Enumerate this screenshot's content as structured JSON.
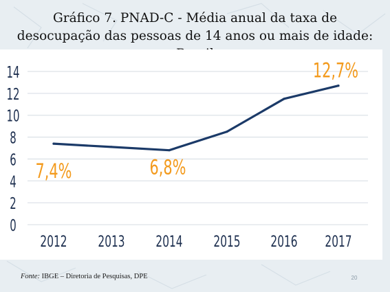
{
  "slide": {
    "title_line1": "Gráfico 7. PNAD-C - Média anual da taxa de",
    "title_line2": "desocupação das pessoas de 14 anos ou mais de idade:",
    "title_line3": "Brasil",
    "source_label": "Fonte:",
    "source_text": " IBGE – Diretoria de Pesquisas, DPE",
    "page_number": "20"
  },
  "colors": {
    "line": "#1b3a68",
    "highlight_label": "#f39a1c",
    "axis_text": "#1d2f4f",
    "grid": "#dde2e8"
  },
  "chart_data": {
    "type": "line",
    "title": "Gráfico 7. PNAD-C - Média anual da taxa de desocupação das pessoas de 14 anos ou mais de idade: Brasil",
    "xlabel": "",
    "ylabel": "",
    "categories": [
      "2012",
      "2013",
      "2014",
      "2015",
      "2016",
      "2017"
    ],
    "values": [
      7.4,
      7.1,
      6.8,
      8.5,
      11.5,
      12.7
    ],
    "ylim": [
      0,
      14
    ],
    "yticks": [
      "0",
      "2",
      "4",
      "6",
      "8",
      "10",
      "12",
      "14"
    ],
    "grid": true,
    "legend": "none",
    "annotations": [
      {
        "index": 0,
        "text": "7,4%"
      },
      {
        "index": 2,
        "text": "6,8%"
      },
      {
        "index": 5,
        "text": "12,7%"
      }
    ]
  }
}
